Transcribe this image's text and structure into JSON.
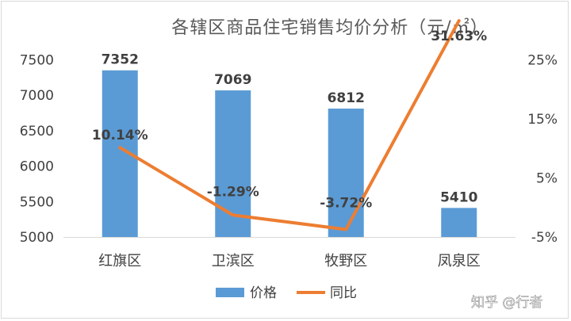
{
  "chart_data": {
    "type": "bar",
    "title": "各辖区商品住宅销售均价分析（元/㎡）",
    "categories": [
      "红旗区",
      "卫滨区",
      "牧野区",
      "凤泉区"
    ],
    "series": [
      {
        "name": "价格",
        "type": "bar",
        "axis": "left",
        "values": [
          7352,
          7069,
          6812,
          5410
        ],
        "labels": [
          "7352",
          "7069",
          "6812",
          "5410"
        ],
        "color": "#5b9bd5"
      },
      {
        "name": "同比",
        "type": "line",
        "axis": "right",
        "values": [
          10.14,
          -1.29,
          -3.72,
          31.63
        ],
        "labels": [
          "10.14%",
          "-1.29%",
          "-3.72%",
          "31.63%"
        ],
        "color": "#ed7d31"
      }
    ],
    "y_left": {
      "min": 5000,
      "max": 7500,
      "ticks": [
        "5000",
        "5500",
        "6000",
        "6500",
        "7000",
        "7500"
      ]
    },
    "y_right": {
      "min": -5,
      "max": 25,
      "tick_values": [
        -5,
        5,
        15,
        25
      ],
      "ticks": [
        "-5%",
        "5%",
        "15%",
        "25%"
      ]
    },
    "legend": {
      "position": "bottom"
    },
    "grid": false
  },
  "watermark": "知乎 @行者"
}
